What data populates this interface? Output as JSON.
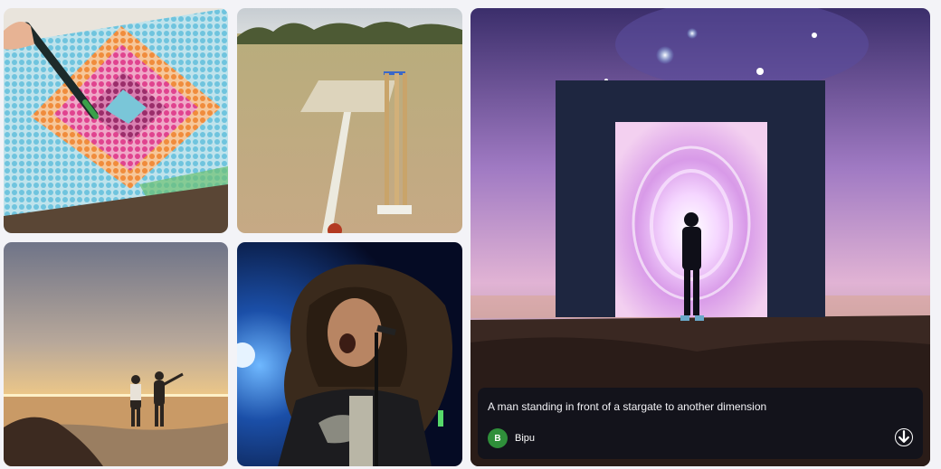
{
  "featured": {
    "caption": "A man standing in front of a stargate to another dimension",
    "author_name": "Bipu",
    "author_initial": "B",
    "avatar_color": "#2f8f3a",
    "download_icon": "download-icon"
  },
  "tiles": [
    {
      "subject": "diamond painting mosaic with pen"
    },
    {
      "subject": "cricket wicket stumps on pitch"
    },
    {
      "subject": "couple walking into sea at sunset"
    },
    {
      "subject": "long-haired singer on stage"
    },
    {
      "subject": "man before stargate portal"
    }
  ]
}
